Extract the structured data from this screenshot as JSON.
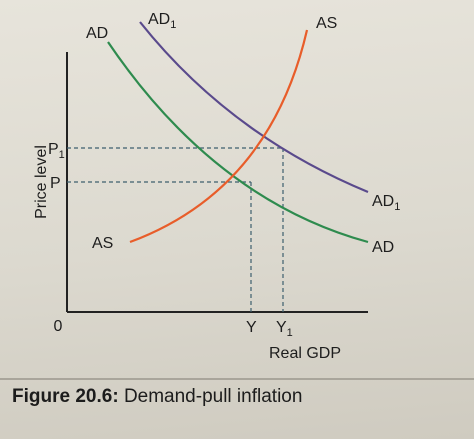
{
  "diagram": {
    "axes": {
      "y_label": "Price level",
      "x_label": "Real GDP",
      "origin_label": "0"
    },
    "y_ticks": {
      "p": "P",
      "p1": "P",
      "p1_sub": "1"
    },
    "x_ticks": {
      "y": "Y",
      "y1": "Y",
      "y1_sub": "1"
    },
    "curves": {
      "ad_top": "AD",
      "ad_end": "AD",
      "ad1_top": "AD",
      "ad1_end": "AD",
      "ad1_sub": "1",
      "as_top": "AS",
      "as_start": "AS"
    },
    "colors": {
      "ad": "#2e8b4e",
      "ad1": "#5a4a8c",
      "as": "#e85d2a",
      "axis": "#222222",
      "guide": "#3d5f6e"
    }
  },
  "caption": {
    "label": "Figure 20.6:",
    "text": "Demand-pull inflation"
  }
}
